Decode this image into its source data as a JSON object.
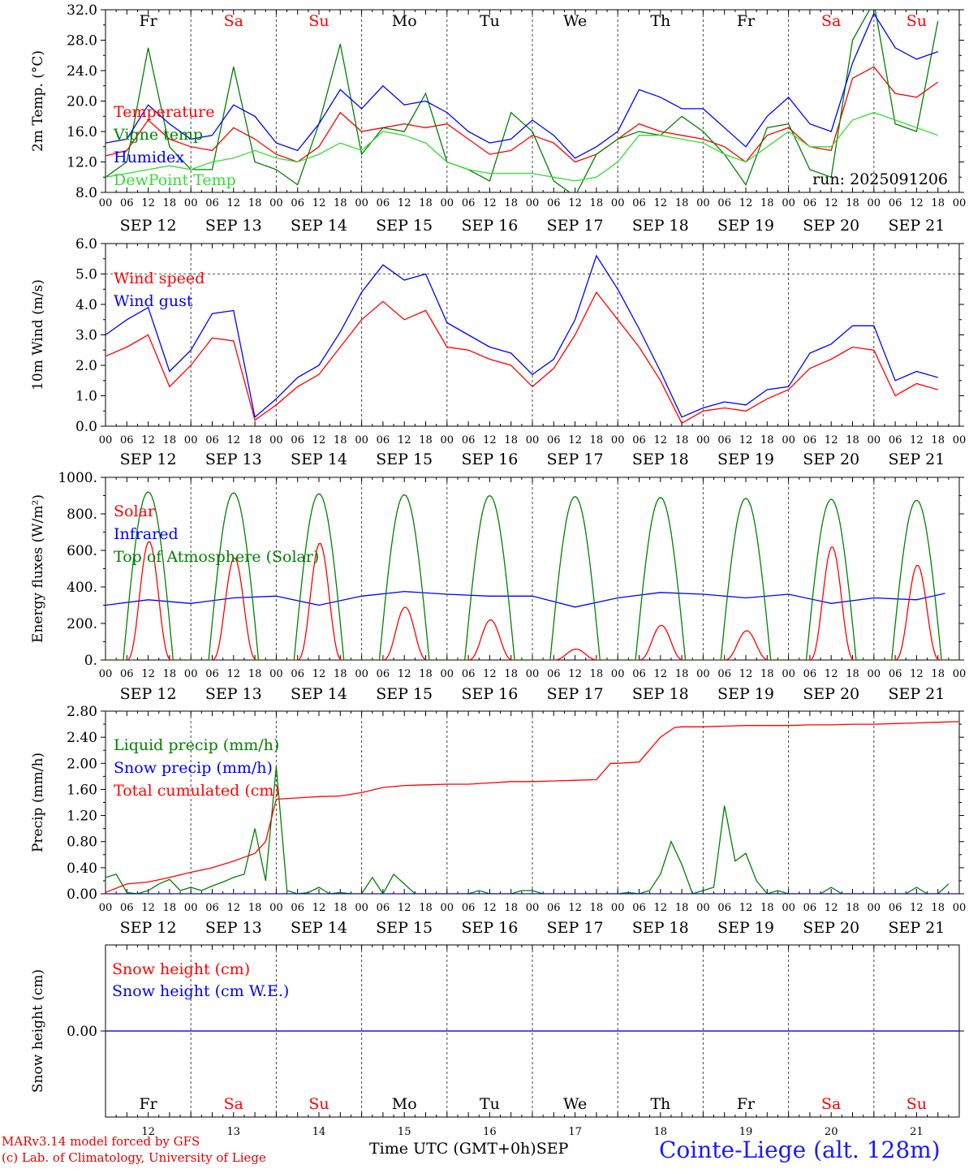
{
  "chart_data": [
    {
      "type": "line",
      "ylabel": "2m Temp. (°C)",
      "ylim": [
        8,
        32
      ],
      "y_ticks": [
        "8.0",
        "12.0",
        "16.0",
        "20.0",
        "24.0",
        "28.0",
        "32.0"
      ],
      "annotation": "run: 2025091206",
      "series": [
        {
          "name": "Temperature",
          "color": "#ff0000",
          "x_hours": [
            0,
            6,
            12,
            18,
            24,
            30,
            36,
            42,
            48,
            54,
            60,
            66,
            72,
            78,
            84,
            90,
            96,
            102,
            108,
            114,
            120,
            126,
            132,
            138,
            144,
            150,
            156,
            162,
            168,
            174,
            180,
            186,
            192,
            198,
            204,
            210,
            216,
            222,
            228,
            234
          ],
          "values": [
            12.8,
            13.5,
            17.5,
            15.0,
            14.0,
            13.5,
            16.5,
            15.0,
            13.0,
            12.0,
            14.0,
            18.5,
            16.0,
            16.5,
            17.0,
            16.5,
            17.0,
            15.0,
            13.0,
            13.5,
            15.5,
            14.5,
            12.0,
            13.0,
            15.0,
            17.0,
            16.0,
            15.5,
            15.0,
            14.0,
            12.0,
            15.5,
            16.5,
            14.0,
            13.5,
            23.0,
            24.5,
            21.0,
            20.5,
            22.5
          ]
        },
        {
          "name": "Vigne temp",
          "color": "#008000",
          "x_hours": [
            0,
            6,
            12,
            18,
            24,
            30,
            36,
            42,
            48,
            54,
            60,
            66,
            72,
            78,
            84,
            90,
            96,
            102,
            108,
            114,
            120,
            126,
            132,
            138,
            144,
            150,
            156,
            162,
            168,
            174,
            180,
            186,
            192,
            198,
            204,
            210,
            216,
            222,
            228,
            234
          ],
          "values": [
            10.0,
            12.0,
            27.0,
            14.0,
            11.0,
            11.0,
            24.5,
            12.0,
            11.0,
            9.0,
            17.0,
            27.5,
            13.0,
            16.5,
            16.0,
            21.0,
            12.0,
            11.0,
            9.5,
            18.5,
            16.0,
            9.5,
            7.5,
            13.0,
            15.0,
            16.0,
            15.5,
            18.0,
            16.0,
            13.0,
            9.0,
            16.5,
            17.0,
            11.0,
            10.0,
            28.0,
            33.0,
            17.0,
            16.0,
            30.5
          ]
        },
        {
          "name": "Humidex",
          "color": "#0000ff",
          "x_hours": [
            0,
            6,
            12,
            18,
            24,
            30,
            36,
            42,
            48,
            54,
            60,
            66,
            72,
            78,
            84,
            90,
            96,
            102,
            108,
            114,
            120,
            126,
            132,
            138,
            144,
            150,
            156,
            162,
            168,
            174,
            180,
            186,
            192,
            198,
            204,
            210,
            216,
            222,
            228,
            234
          ],
          "values": [
            14.5,
            15.0,
            19.5,
            17.0,
            15.0,
            15.5,
            19.5,
            18.0,
            14.5,
            13.5,
            17.0,
            21.5,
            19.0,
            22.0,
            19.5,
            20.0,
            18.5,
            16.0,
            14.5,
            15.0,
            17.5,
            15.5,
            12.5,
            14.0,
            16.0,
            21.5,
            20.5,
            19.0,
            19.0,
            16.5,
            14.0,
            18.0,
            20.5,
            17.0,
            16.0,
            25.0,
            31.5,
            27.0,
            25.5,
            26.5
          ]
        },
        {
          "name": "DewPoint Temp",
          "color": "#33dd33",
          "x_hours": [
            0,
            6,
            12,
            18,
            24,
            30,
            36,
            42,
            48,
            54,
            60,
            66,
            72,
            78,
            84,
            90,
            96,
            102,
            108,
            114,
            120,
            126,
            132,
            138,
            144,
            150,
            156,
            162,
            168,
            174,
            180,
            186,
            192,
            198,
            204,
            210,
            216,
            222,
            228,
            234
          ],
          "values": [
            10.0,
            10.5,
            11.0,
            11.5,
            11.0,
            12.0,
            12.5,
            13.5,
            12.5,
            12.0,
            13.0,
            14.5,
            13.5,
            16.0,
            15.5,
            14.5,
            12.0,
            11.0,
            10.5,
            10.5,
            10.5,
            10.0,
            9.5,
            10.0,
            12.0,
            15.5,
            15.5,
            15.0,
            14.5,
            13.0,
            12.0,
            14.0,
            16.0,
            14.0,
            14.0,
            17.5,
            18.5,
            17.5,
            16.5,
            15.5
          ]
        }
      ]
    },
    {
      "type": "line",
      "ylabel": "10m Wind (m/s)",
      "ylim": [
        0,
        6
      ],
      "y_ticks": [
        "0.0",
        "1.0",
        "2.0",
        "3.0",
        "4.0",
        "5.0",
        "6.0"
      ],
      "reference_line": 5.0,
      "series": [
        {
          "name": "Wind speed",
          "color": "#ff0000",
          "x_hours": [
            0,
            6,
            12,
            18,
            24,
            30,
            36,
            42,
            48,
            54,
            60,
            66,
            72,
            78,
            84,
            90,
            96,
            102,
            108,
            114,
            120,
            126,
            132,
            138,
            144,
            150,
            156,
            162,
            168,
            174,
            180,
            186,
            192,
            198,
            204,
            210,
            216,
            222,
            228,
            234
          ],
          "values": [
            2.3,
            2.6,
            3.0,
            1.3,
            2.0,
            2.9,
            2.8,
            0.2,
            0.7,
            1.3,
            1.7,
            2.6,
            3.5,
            4.1,
            3.5,
            3.8,
            2.6,
            2.5,
            2.2,
            2.0,
            1.3,
            1.9,
            3.0,
            4.4,
            3.5,
            2.6,
            1.5,
            0.1,
            0.5,
            0.6,
            0.5,
            0.9,
            1.2,
            1.9,
            2.2,
            2.6,
            2.5,
            1.0,
            1.4,
            1.2
          ]
        },
        {
          "name": "Wind gust",
          "color": "#0000ff",
          "x_hours": [
            0,
            6,
            12,
            18,
            24,
            30,
            36,
            42,
            48,
            54,
            60,
            66,
            72,
            78,
            84,
            90,
            96,
            102,
            108,
            114,
            120,
            126,
            132,
            138,
            144,
            150,
            156,
            162,
            168,
            174,
            180,
            186,
            192,
            198,
            204,
            210,
            216,
            222,
            228,
            234
          ],
          "values": [
            3.0,
            3.5,
            3.9,
            1.8,
            2.5,
            3.7,
            3.8,
            0.3,
            0.9,
            1.6,
            2.0,
            3.1,
            4.4,
            5.3,
            4.8,
            5.0,
            3.4,
            3.0,
            2.6,
            2.4,
            1.7,
            2.2,
            3.5,
            5.6,
            4.5,
            3.2,
            1.8,
            0.3,
            0.6,
            0.8,
            0.7,
            1.2,
            1.3,
            2.4,
            2.7,
            3.3,
            3.3,
            1.5,
            1.8,
            1.6
          ]
        }
      ]
    },
    {
      "type": "line",
      "ylabel": "Energy fluxes (W/m²)",
      "ylim": [
        0,
        1000
      ],
      "y_ticks": [
        "0.",
        "200.",
        "400.",
        "600.",
        "800.",
        "1000."
      ],
      "series": [
        {
          "name": "Solar",
          "color": "#ff0000",
          "day_peaks": [
            650,
            560,
            640,
            290,
            220,
            60,
            190,
            160,
            620,
            520
          ]
        },
        {
          "name": "Infrared",
          "color": "#0000ff",
          "x_hours": [
            0,
            12,
            24,
            36,
            48,
            60,
            72,
            84,
            96,
            108,
            120,
            132,
            144,
            156,
            168,
            180,
            192,
            204,
            216,
            228,
            236
          ],
          "values": [
            300,
            330,
            310,
            340,
            350,
            300,
            350,
            375,
            360,
            350,
            350,
            290,
            340,
            370,
            360,
            340,
            360,
            310,
            340,
            330,
            365
          ]
        },
        {
          "name": "Top of Atmosphere (Solar)",
          "color": "#008000",
          "day_peaks": [
            920,
            915,
            910,
            905,
            900,
            895,
            890,
            885,
            880,
            875
          ]
        }
      ]
    },
    {
      "type": "line",
      "ylabel": "Precip (mm/h)",
      "ylim": [
        0,
        2.8
      ],
      "y_ticks": [
        "0.00",
        "0.40",
        "0.80",
        "1.20",
        "1.60",
        "2.00",
        "2.40",
        "2.80"
      ],
      "series": [
        {
          "name": "Liquid precip (mm/h)",
          "color": "#008000",
          "x_hours": [
            0,
            3,
            6,
            9,
            12,
            15,
            18,
            21,
            24,
            27,
            30,
            33,
            36,
            39,
            42,
            45,
            48,
            51,
            54,
            57,
            60,
            63,
            66,
            69,
            72,
            75,
            78,
            81,
            84,
            87,
            90,
            93,
            96,
            99,
            102,
            105,
            108,
            111,
            114,
            117,
            120,
            123,
            126,
            129,
            132,
            135,
            138,
            141,
            144,
            147,
            150,
            153,
            156,
            159,
            162,
            165,
            168,
            171,
            174,
            177,
            180,
            183,
            186,
            189,
            192,
            195,
            198,
            201,
            204,
            207,
            210,
            213,
            216,
            219,
            222,
            225,
            228,
            231,
            234,
            237
          ],
          "values": [
            0.25,
            0.3,
            0.02,
            0.0,
            0.05,
            0.15,
            0.22,
            0.05,
            0.1,
            0.05,
            0.12,
            0.18,
            0.25,
            0.3,
            1.0,
            0.2,
            1.95,
            0.05,
            0.0,
            0.02,
            0.1,
            0.0,
            0.02,
            0.0,
            0.0,
            0.25,
            0.0,
            0.3,
            0.15,
            0.0,
            0.0,
            0.0,
            0.0,
            0.0,
            0.0,
            0.05,
            0.0,
            0.0,
            0.0,
            0.05,
            0.05,
            0.0,
            0.0,
            0.0,
            0.0,
            0.0,
            0.0,
            0.0,
            0.0,
            0.02,
            0.0,
            0.05,
            0.3,
            0.8,
            0.45,
            0.0,
            0.05,
            0.1,
            1.35,
            0.5,
            0.62,
            0.2,
            0.0,
            0.05,
            0.0,
            0.0,
            0.0,
            0.0,
            0.1,
            0.0,
            0.0,
            0.0,
            0.0,
            0.0,
            0.0,
            0.0,
            0.1,
            0.0,
            0.0,
            0.15
          ]
        },
        {
          "name": "Snow precip (mm/h)",
          "color": "#0000ff",
          "x_hours": [
            0,
            240
          ],
          "values": [
            0,
            0
          ]
        },
        {
          "name": "Total cumulated (cm)",
          "color": "#ff0000",
          "x_hours": [
            0,
            6,
            12,
            18,
            24,
            30,
            36,
            42,
            45,
            48,
            54,
            60,
            66,
            72,
            78,
            84,
            90,
            96,
            102,
            108,
            114,
            120,
            126,
            132,
            138,
            142,
            144,
            150,
            156,
            160,
            162,
            168,
            174,
            180,
            186,
            192,
            198,
            204,
            210,
            216,
            222,
            228,
            234,
            240
          ],
          "values": [
            0.02,
            0.15,
            0.18,
            0.25,
            0.33,
            0.4,
            0.5,
            0.62,
            0.8,
            1.45,
            1.47,
            1.49,
            1.5,
            1.55,
            1.63,
            1.66,
            1.67,
            1.68,
            1.68,
            1.7,
            1.72,
            1.72,
            1.73,
            1.74,
            1.75,
            2.0,
            2.0,
            2.02,
            2.4,
            2.55,
            2.56,
            2.56,
            2.57,
            2.58,
            2.58,
            2.58,
            2.59,
            2.59,
            2.6,
            2.6,
            2.61,
            2.62,
            2.63,
            2.64
          ]
        }
      ]
    },
    {
      "type": "line",
      "ylabel": "Snow height (cm)",
      "y_ticks": [
        "0.00"
      ],
      "series": [
        {
          "name": "Snow height (cm)",
          "color": "#ff0000",
          "x_hours": [
            0,
            240
          ],
          "values": [
            0,
            0
          ]
        },
        {
          "name": "Snow height (cm W.E.)",
          "color": "#0000ff",
          "x_hours": [
            0,
            240
          ],
          "values": [
            0,
            0
          ]
        }
      ]
    }
  ],
  "x_axis": {
    "hour_labels": [
      "00",
      "06",
      "12",
      "18"
    ],
    "end_label": "00",
    "date_labels": [
      "SEP 12",
      "SEP 13",
      "SEP 14",
      "SEP 15",
      "SEP 16",
      "SEP 17",
      "SEP 18",
      "SEP 19",
      "SEP 20",
      "SEP 21"
    ],
    "day_names": [
      "Fr",
      "Sa",
      "Su",
      "Mo",
      "Tu",
      "We",
      "Th",
      "Fr",
      "Sa",
      "Su"
    ],
    "weekend_color": "#ff0000",
    "weekday_color": "#000000",
    "bottom_day_numbers": [
      "12",
      "13",
      "14",
      "15",
      "16",
      "17",
      "18",
      "19",
      "20",
      "21"
    ]
  },
  "footer": {
    "model": "MARv3.14 model forced by GFS",
    "credit": "(c) Lab. of Climatology, University of Liege",
    "axis_title": "Time UTC (GMT+0h)",
    "month": "SEP",
    "station": "Cointe-Liege (alt. 128m)"
  }
}
